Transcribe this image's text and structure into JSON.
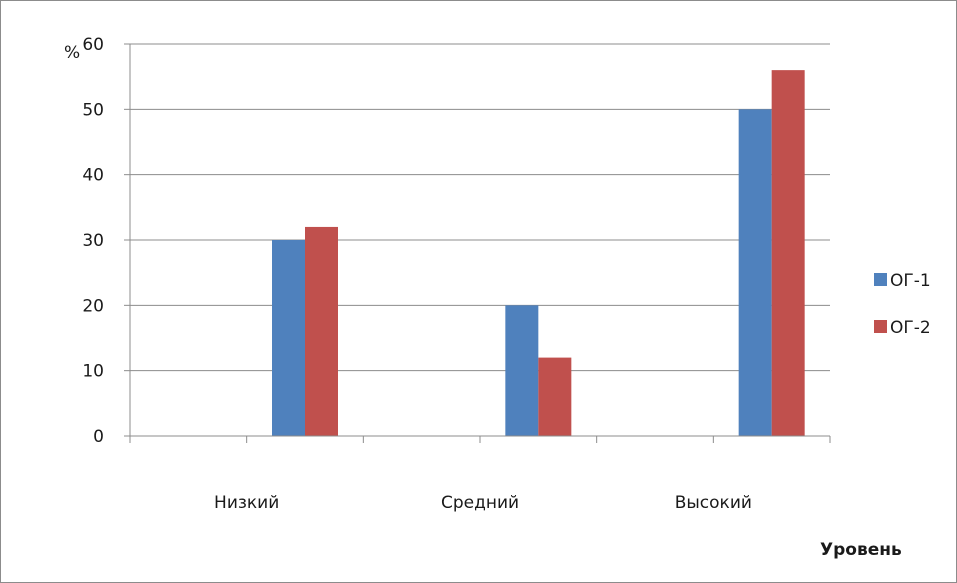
{
  "chart_data": {
    "type": "bar",
    "categories": [
      "Низкий",
      "Средний",
      "Высокий"
    ],
    "series": [
      {
        "name": "ОГ-1",
        "values": [
          30,
          20,
          50
        ],
        "color": "#4f81bd"
      },
      {
        "name": "ОГ-2",
        "values": [
          32,
          12,
          56
        ],
        "color": "#c0504d"
      }
    ],
    "ylabel": "%",
    "xlabel": "Уровень",
    "ylim": [
      0,
      60
    ],
    "yticks": [
      0,
      10,
      20,
      30,
      40,
      50,
      60
    ],
    "grid": true,
    "legend_position": "right"
  }
}
